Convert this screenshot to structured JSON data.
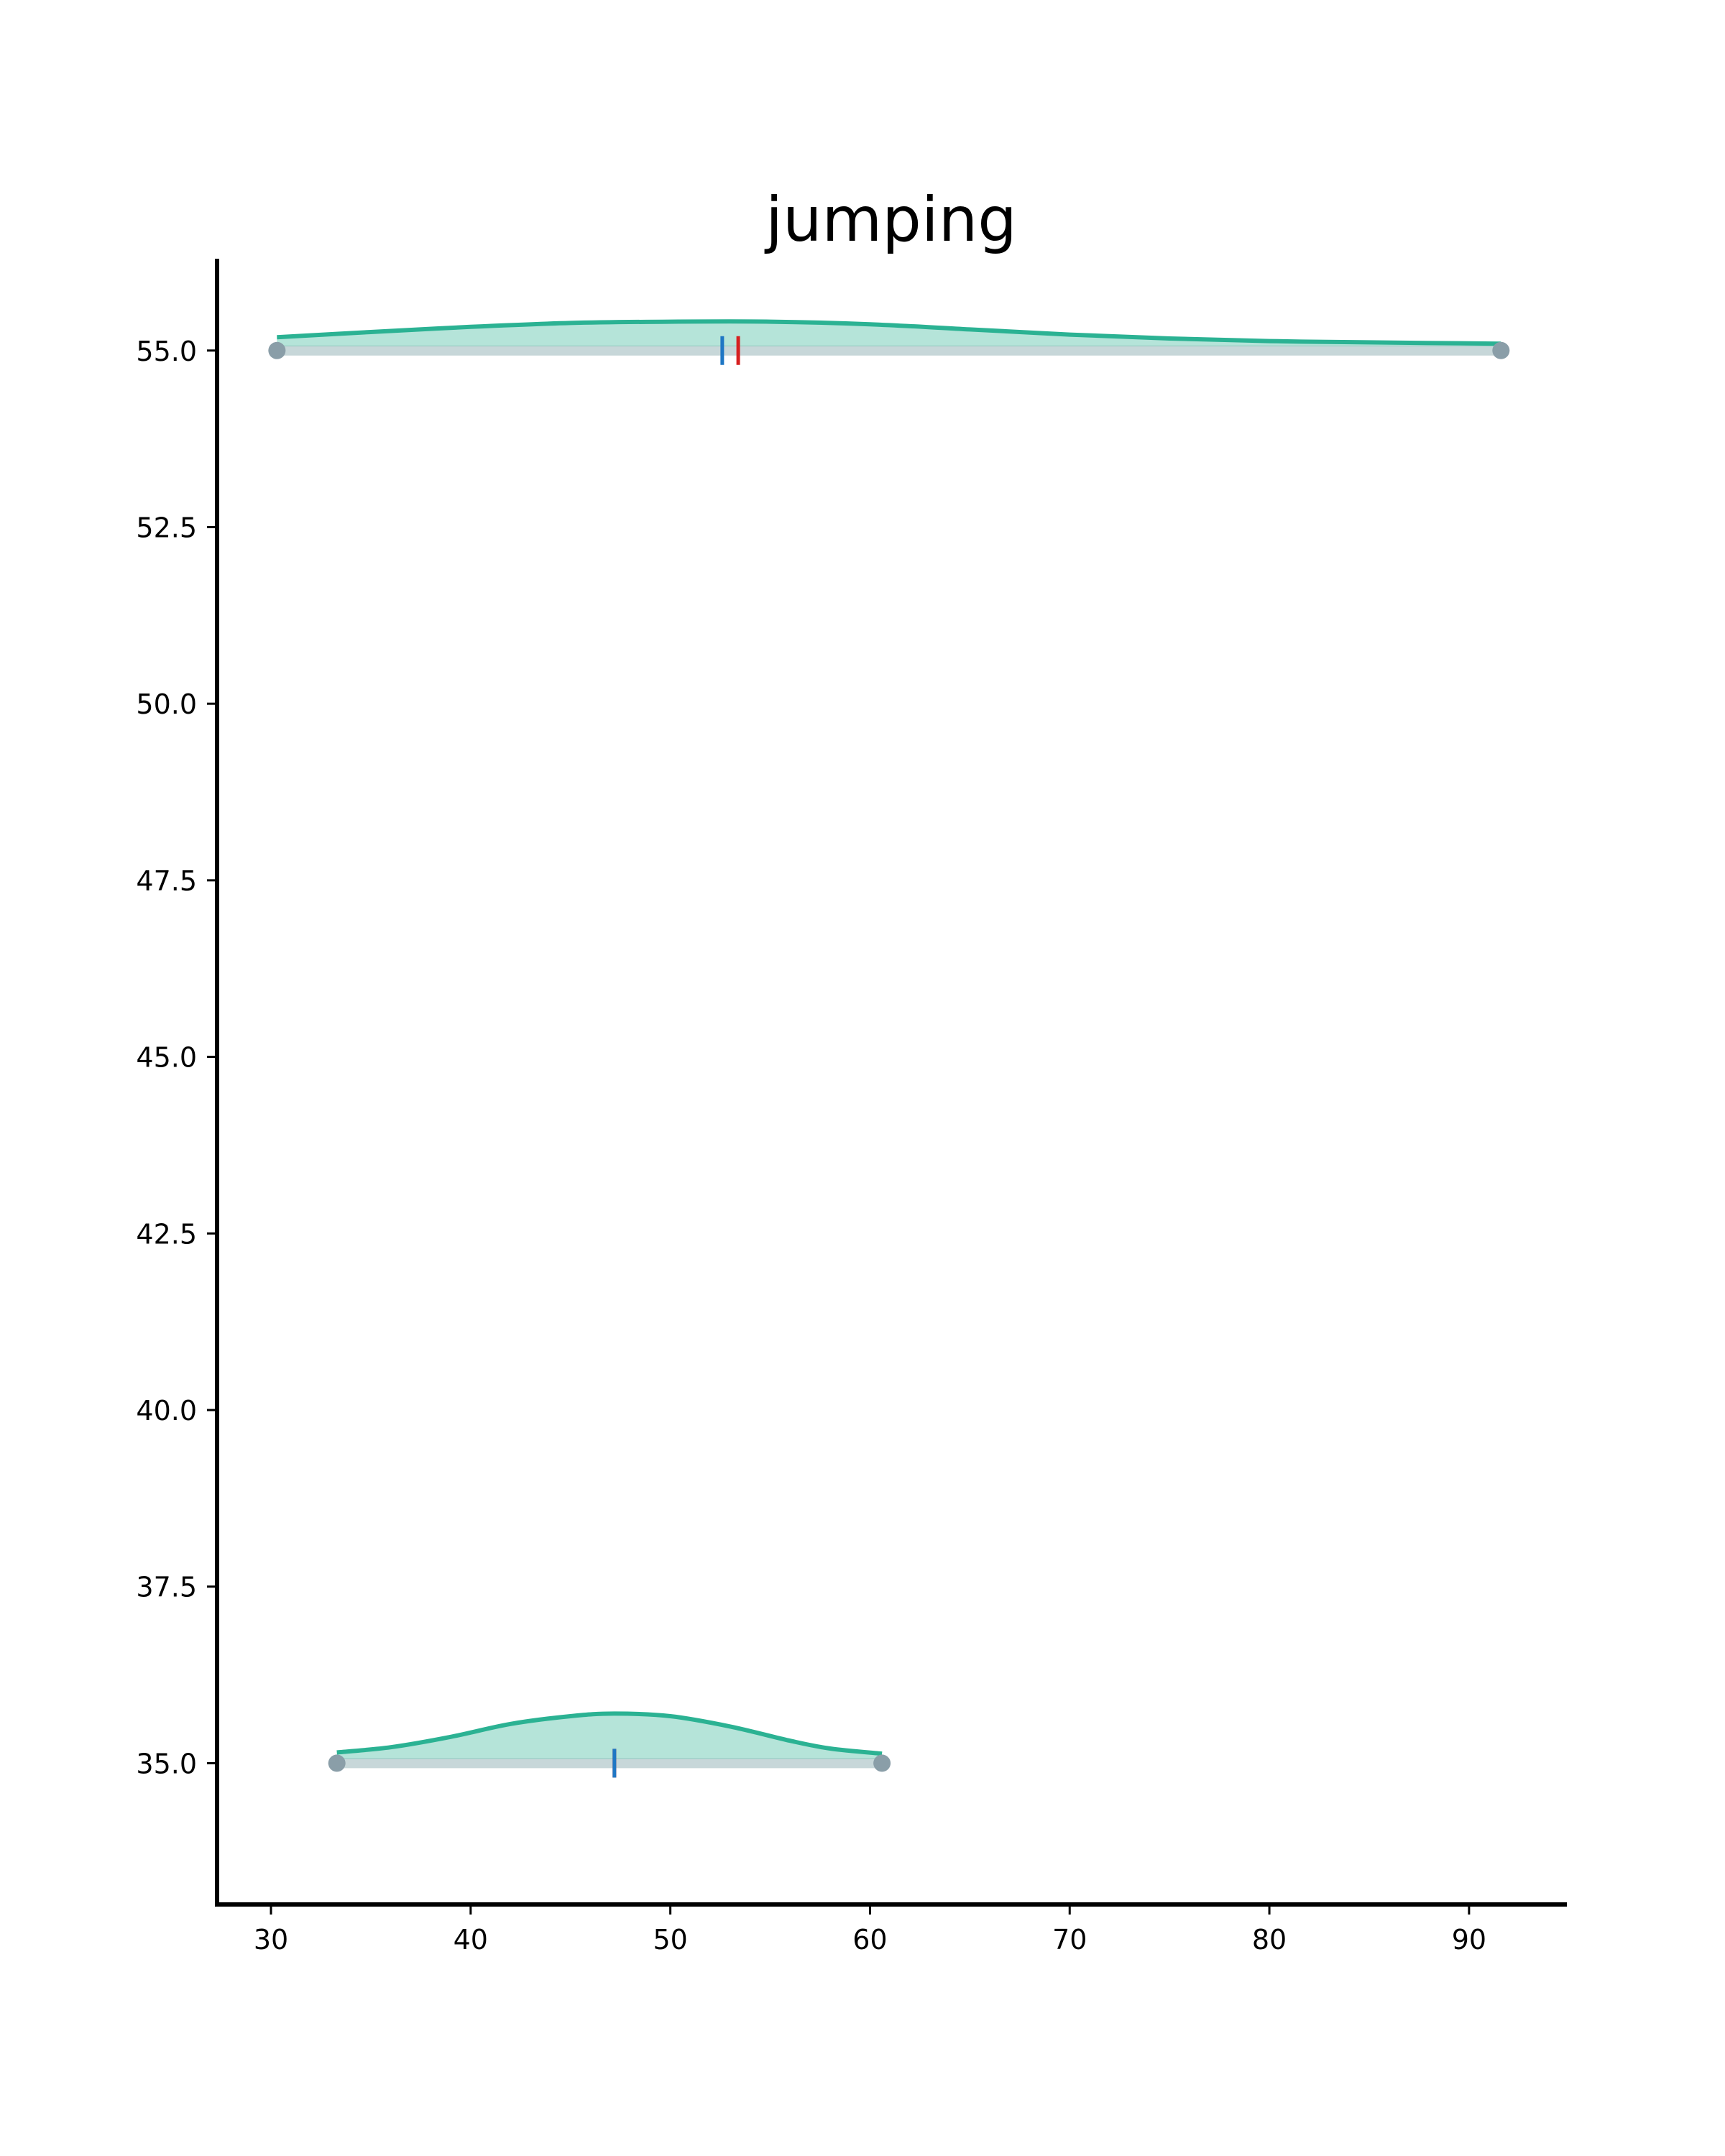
{
  "chart_data": {
    "type": "violin",
    "title": "jumping",
    "xlabel": "",
    "ylabel": "",
    "xlim": [
      27.3,
      94.9
    ],
    "ylim": [
      33.0,
      56.3
    ],
    "x_ticks": [
      "30",
      "40",
      "50",
      "60",
      "70",
      "80",
      "90"
    ],
    "x_tick_values": [
      30,
      40,
      50,
      60,
      70,
      80,
      90
    ],
    "y_ticks": [
      "35.0",
      "37.5",
      "40.0",
      "42.5",
      "45.0",
      "47.5",
      "50.0",
      "52.5",
      "55.0"
    ],
    "y_tick_values": [
      35.0,
      37.5,
      40.0,
      42.5,
      45.0,
      47.5,
      50.0,
      52.5,
      55.0
    ],
    "grid": false,
    "colors": {
      "violin_fill": "#2bb293",
      "violin_edge": "#2bb293",
      "range_bar": "#c7d7d9",
      "endpoint": "#8a9ea8",
      "mean_marker": "#1f77c4",
      "median_marker": "#d62020",
      "axis": "#000000"
    },
    "violins": [
      {
        "y": 55.0,
        "min": 30.3,
        "max": 91.6,
        "mean": 52.6,
        "median": 53.4,
        "density_x": [
          30.3,
          35,
          40,
          45,
          50,
          55,
          60,
          65,
          70,
          75,
          80,
          85,
          91.6
        ],
        "density_h": [
          0.07,
          0.11,
          0.15,
          0.18,
          0.19,
          0.19,
          0.17,
          0.13,
          0.09,
          0.06,
          0.04,
          0.03,
          0.02
        ]
      },
      {
        "y": 35.0,
        "min": 33.3,
        "max": 60.6,
        "mean": 47.2,
        "median": 47.2,
        "density_x": [
          33.3,
          36,
          39,
          42,
          45,
          47.2,
          50,
          53,
          56,
          58,
          60.6
        ],
        "density_h": [
          0.05,
          0.09,
          0.17,
          0.27,
          0.33,
          0.35,
          0.33,
          0.25,
          0.14,
          0.08,
          0.04
        ]
      }
    ]
  }
}
